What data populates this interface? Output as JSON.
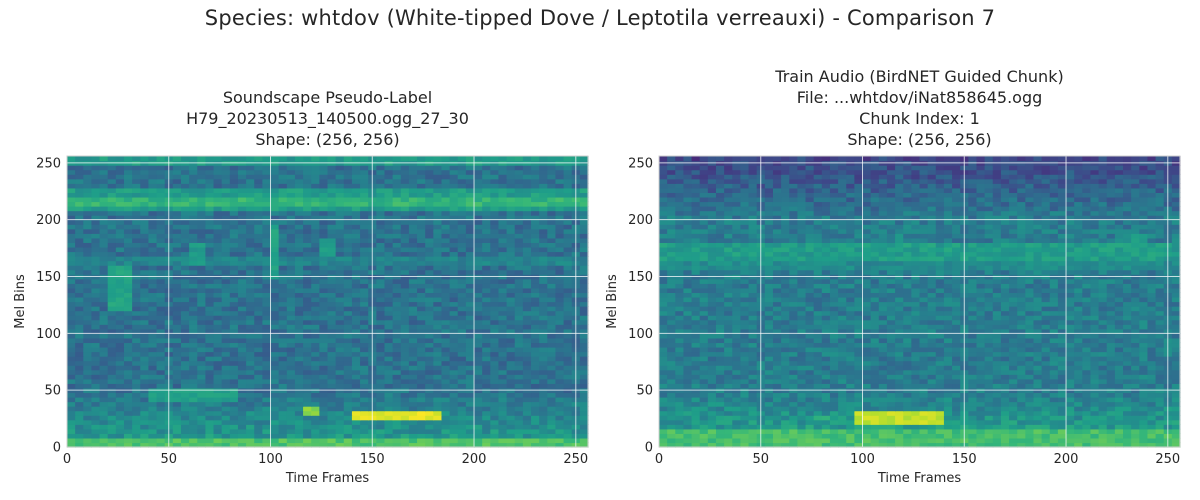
{
  "suptitle": "Species: whtdov (White-tipped Dove / Leptotila verreauxi) - Comparison 7",
  "colors": {
    "colormap": "viridis",
    "grid": "#ffffff",
    "frame": "#ffffff"
  },
  "chart_data": [
    {
      "type": "heatmap",
      "title_lines": [
        "Soundscape Pseudo-Label",
        "H79_20230513_140500.ogg_27_30",
        "Shape: (256, 256)"
      ],
      "xlabel": "Time Frames",
      "ylabel": "Mel Bins",
      "xlim": [
        0,
        256
      ],
      "ylim": [
        0,
        256
      ],
      "xticks": [
        0,
        50,
        100,
        150,
        200,
        250
      ],
      "yticks": [
        0,
        50,
        100,
        150,
        200,
        250
      ],
      "grid": true,
      "shape": [
        256,
        256
      ],
      "background_level": 0.38,
      "bands": [
        {
          "y": 252,
          "h": 3,
          "level": 0.55
        },
        {
          "y": 225,
          "h": 3,
          "level": 0.55
        },
        {
          "y": 215,
          "h": 4,
          "level": 0.65
        },
        {
          "y": 210,
          "h": 3,
          "level": 0.55
        },
        {
          "y": 165,
          "h": 4,
          "level": 0.45
        },
        {
          "y": 3,
          "h": 6,
          "level": 0.72
        }
      ],
      "blobs": [
        {
          "x0": 140,
          "x1": 184,
          "y0": 23,
          "y1": 31,
          "level": 1.0
        },
        {
          "x0": 115,
          "x1": 122,
          "y0": 27,
          "y1": 34,
          "level": 0.85
        },
        {
          "x0": 40,
          "x1": 82,
          "y0": 40,
          "y1": 50,
          "level": 0.6
        },
        {
          "x0": 22,
          "x1": 30,
          "y0": 120,
          "y1": 160,
          "level": 0.62
        },
        {
          "x0": 100,
          "x1": 104,
          "y0": 150,
          "y1": 195,
          "level": 0.62
        },
        {
          "x0": 60,
          "x1": 68,
          "y0": 160,
          "y1": 180,
          "level": 0.58
        },
        {
          "x0": 125,
          "x1": 130,
          "y0": 170,
          "y1": 182,
          "level": 0.58
        }
      ]
    },
    {
      "type": "heatmap",
      "title_lines": [
        "Train Audio (BirdNET Guided Chunk)",
        "File: ...whtdov/iNat858645.ogg",
        "Chunk Index: 1",
        "Shape: (256, 256)"
      ],
      "xlabel": "Time Frames",
      "ylabel": "Mel Bins",
      "xlim": [
        0,
        256
      ],
      "ylim": [
        0,
        256
      ],
      "xticks": [
        0,
        50,
        100,
        150,
        200,
        250
      ],
      "yticks": [
        0,
        50,
        100,
        150,
        200,
        250
      ],
      "grid": true,
      "shape": [
        256,
        256
      ],
      "background_level": 0.42,
      "top_dark_from": 200,
      "bands": [
        {
          "y": 250,
          "h": 6,
          "level": 0.18
        },
        {
          "y": 172,
          "h": 6,
          "level": 0.55
        },
        {
          "y": 162,
          "h": 4,
          "level": 0.48
        },
        {
          "y": 5,
          "h": 10,
          "level": 0.7
        }
      ],
      "blobs": [
        {
          "x0": 95,
          "x1": 140,
          "y0": 22,
          "y1": 30,
          "level": 0.95
        },
        {
          "x0": 75,
          "x1": 82,
          "y0": 23,
          "y1": 29,
          "level": 0.7
        },
        {
          "x0": 115,
          "x1": 120,
          "y0": 170,
          "y1": 186,
          "level": 0.58
        },
        {
          "x0": 232,
          "x1": 238,
          "y0": 172,
          "y1": 186,
          "level": 0.58
        }
      ]
    }
  ]
}
